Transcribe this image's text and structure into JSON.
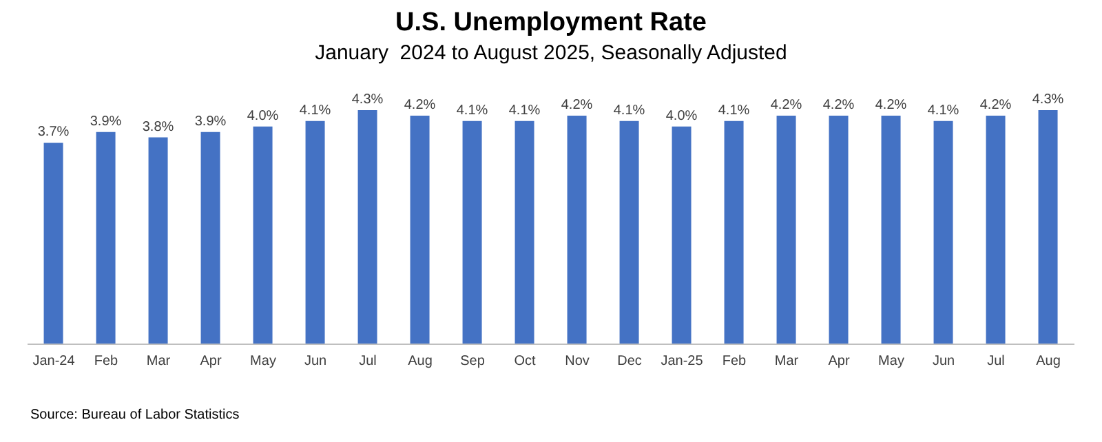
{
  "chart_data": {
    "type": "bar",
    "title": "U.S. Unemployment Rate",
    "subtitle": "January  2024 to August 2025, Seasonally Adjusted",
    "categories": [
      "Jan-24",
      "Feb",
      "Mar",
      "Apr",
      "May",
      "Jun",
      "Jul",
      "Aug",
      "Sep",
      "Oct",
      "Nov",
      "Dec",
      "Jan-25",
      "Feb",
      "Mar",
      "Apr",
      "May",
      "Jun",
      "Jul",
      "Aug"
    ],
    "values": [
      3.7,
      3.9,
      3.8,
      3.9,
      4.0,
      4.1,
      4.3,
      4.2,
      4.1,
      4.1,
      4.2,
      4.1,
      4.0,
      4.1,
      4.2,
      4.2,
      4.2,
      4.1,
      4.2,
      4.3
    ],
    "value_labels": [
      "3.7%",
      "3.9%",
      "3.8%",
      "3.9%",
      "4.0%",
      "4.1%",
      "4.3%",
      "4.2%",
      "4.1%",
      "4.1%",
      "4.2%",
      "4.1%",
      "4.0%",
      "4.1%",
      "4.2%",
      "4.2%",
      "4.2%",
      "4.1%",
      "4.2%",
      "4.3%"
    ],
    "color": "#4472c4",
    "annotations": [
      "Source: Bureau of Labor Statistics"
    ]
  }
}
